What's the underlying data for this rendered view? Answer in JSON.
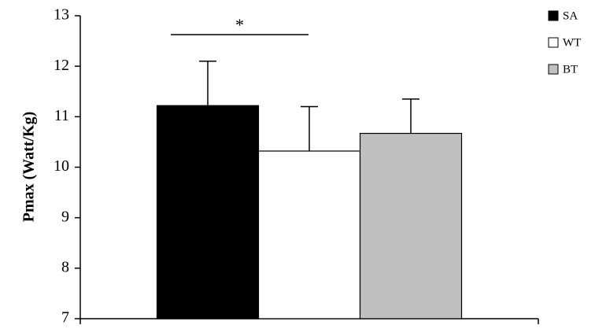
{
  "chart_data": {
    "type": "bar",
    "ylabel": "Pmax (Watt/Kg)",
    "categories": [
      null
    ],
    "series": [
      {
        "name": "SA",
        "color": "#000000",
        "values": [
          11.22
        ],
        "errors": [
          0.88
        ]
      },
      {
        "name": "WT",
        "color": "#ffffff",
        "values": [
          10.32
        ],
        "errors": [
          0.88
        ]
      },
      {
        "name": "BT",
        "color": "#c0c0c0",
        "values": [
          10.67
        ],
        "errors": [
          0.68
        ]
      }
    ],
    "ylim": [
      7,
      13
    ],
    "yticks": [
      7,
      8,
      9,
      10,
      11,
      12,
      13
    ],
    "annotation": {
      "text": "*"
    },
    "legend": "upper right"
  }
}
